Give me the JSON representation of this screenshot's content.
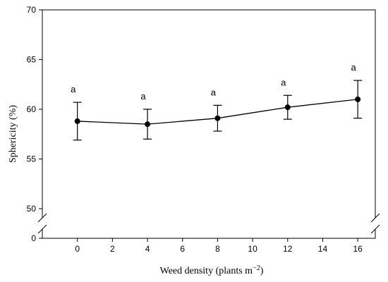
{
  "chart_data": {
    "type": "line",
    "xlabel": "Weed density (plants m",
    "xlabel_sup": "−2",
    "xlabel_close": ")",
    "ylabel": "Sphericity (%)",
    "xlim": [
      -2,
      17
    ],
    "xticks": [
      0,
      2,
      4,
      6,
      8,
      10,
      12,
      14,
      16
    ],
    "yticks_upper": [
      50,
      55,
      60,
      65,
      70
    ],
    "ytick_lower": 0,
    "ylim_upper": [
      50,
      70
    ],
    "axis_break": true,
    "series": [
      {
        "x": [
          0,
          4,
          8,
          12,
          16
        ],
        "y": [
          58.8,
          58.5,
          59.1,
          60.2,
          61.0
        ],
        "err_low": [
          56.9,
          57.0,
          57.8,
          59.0,
          59.1
        ],
        "err_high": [
          60.7,
          60.0,
          60.4,
          61.4,
          62.9
        ],
        "labels": [
          "a",
          "a",
          "a",
          "a",
          "a"
        ]
      }
    ],
    "grid": false,
    "legend": "none"
  }
}
